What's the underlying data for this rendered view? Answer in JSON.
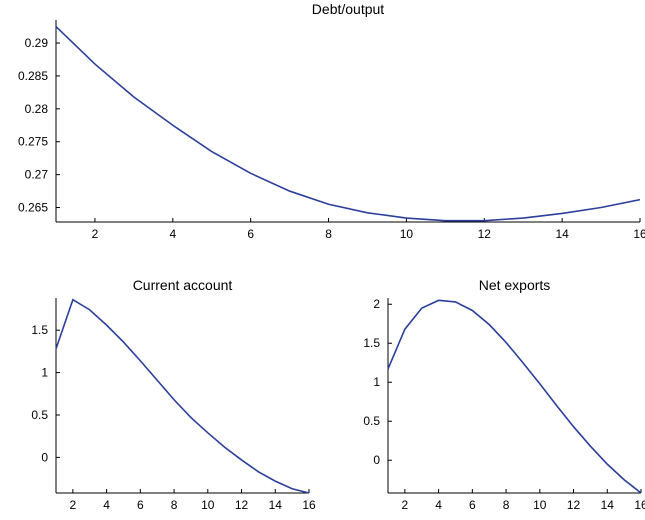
{
  "chart_data": [
    {
      "type": "line",
      "title": "Debt/output",
      "x": [
        1,
        2,
        3,
        4,
        5,
        6,
        7,
        8,
        9,
        10,
        11,
        12,
        13,
        14,
        15,
        16
      ],
      "series": [
        {
          "values": [
            0.2925,
            0.2868,
            0.2818,
            0.2775,
            0.2735,
            0.2702,
            0.2675,
            0.2655,
            0.2642,
            0.2634,
            0.263,
            0.263,
            0.2634,
            0.2641,
            0.265,
            0.2662
          ]
        }
      ],
      "xlim": [
        1,
        16
      ],
      "ylim": [
        0.2628,
        0.2935
      ],
      "xticks": [
        2,
        4,
        6,
        8,
        10,
        12,
        14,
        16
      ],
      "xtick_labels": [
        "2",
        "4",
        "6",
        "8",
        "10",
        "12",
        "14",
        "16"
      ],
      "yticks": [
        0.265,
        0.27,
        0.275,
        0.28,
        0.285,
        0.29
      ],
      "ytick_labels": [
        "0.265",
        "0.27",
        "0.275",
        "0.28",
        "0.285",
        "0.29"
      ],
      "grid": false
    },
    {
      "type": "line",
      "title": "Current account",
      "x": [
        1,
        2,
        3,
        4,
        5,
        6,
        7,
        8,
        9,
        10,
        11,
        12,
        13,
        14,
        15,
        16
      ],
      "series": [
        {
          "values": [
            1.28,
            1.86,
            1.74,
            1.56,
            1.36,
            1.14,
            0.91,
            0.68,
            0.47,
            0.29,
            0.12,
            -0.03,
            -0.17,
            -0.28,
            -0.37,
            -0.42
          ]
        }
      ],
      "xlim": [
        1,
        16
      ],
      "ylim": [
        -0.42,
        1.88
      ],
      "xticks": [
        2,
        4,
        6,
        8,
        10,
        12,
        14,
        16
      ],
      "xtick_labels": [
        "2",
        "4",
        "6",
        "8",
        "10",
        "12",
        "14",
        "16"
      ],
      "yticks": [
        0,
        0.5,
        1,
        1.5
      ],
      "ytick_labels": [
        "0",
        "0.5",
        "1",
        "1.5"
      ],
      "grid": false
    },
    {
      "type": "line",
      "title": "Net exports",
      "x": [
        1,
        2,
        3,
        4,
        5,
        6,
        7,
        8,
        9,
        10,
        11,
        12,
        13,
        14,
        15,
        16
      ],
      "series": [
        {
          "values": [
            1.17,
            1.68,
            1.95,
            2.05,
            2.03,
            1.92,
            1.74,
            1.51,
            1.25,
            0.98,
            0.7,
            0.43,
            0.18,
            -0.05,
            -0.25,
            -0.42
          ]
        }
      ],
      "xlim": [
        1,
        16
      ],
      "ylim": [
        -0.42,
        2.08
      ],
      "xticks": [
        2,
        4,
        6,
        8,
        10,
        12,
        14,
        16
      ],
      "xtick_labels": [
        "2",
        "4",
        "6",
        "8",
        "10",
        "12",
        "14",
        "16"
      ],
      "yticks": [
        0,
        0.5,
        1,
        1.5,
        2
      ],
      "ytick_labels": [
        "0",
        "0.5",
        "1",
        "1.5",
        "2"
      ],
      "grid": false
    }
  ],
  "colors": {
    "line": "#2b3f9c",
    "axis": "#000000"
  }
}
